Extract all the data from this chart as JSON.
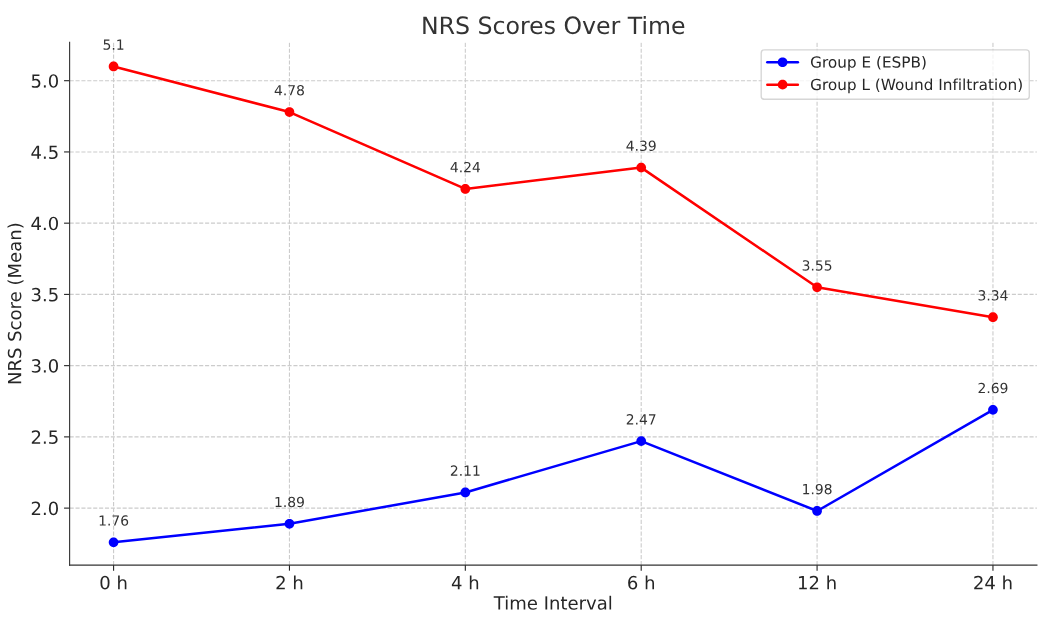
{
  "chart_data": {
    "type": "line",
    "title": "NRS Scores Over Time",
    "xlabel": "Time Interval",
    "ylabel": "NRS Score (Mean)",
    "categories": [
      "0 h",
      "2 h",
      "4 h",
      "6 h",
      "12 h",
      "24 h"
    ],
    "series": [
      {
        "name": "Group E (ESPB)",
        "color": "#0000ff",
        "values": [
          1.76,
          1.89,
          2.11,
          2.47,
          1.98,
          2.69
        ]
      },
      {
        "name": "Group L (Wound Infiltration)",
        "color": "#ff0000",
        "values": [
          5.1,
          4.78,
          4.24,
          4.39,
          3.55,
          3.34
        ]
      }
    ],
    "ylim": [
      1.6,
      5.27
    ],
    "yticks": [
      {
        "value": 2,
        "label": "2.0"
      },
      {
        "value": 2.5,
        "label": "2.5"
      },
      {
        "value": 3,
        "label": "3.0"
      },
      {
        "value": 3.5,
        "label": "3.5"
      },
      {
        "value": 4,
        "label": "4.0"
      },
      {
        "value": 4.5,
        "label": "4.5"
      },
      {
        "value": 5,
        "label": "5.0"
      }
    ],
    "data_labels": true,
    "grid": true,
    "legend": "top right",
    "marker": "circle",
    "line_style": "solid"
  }
}
